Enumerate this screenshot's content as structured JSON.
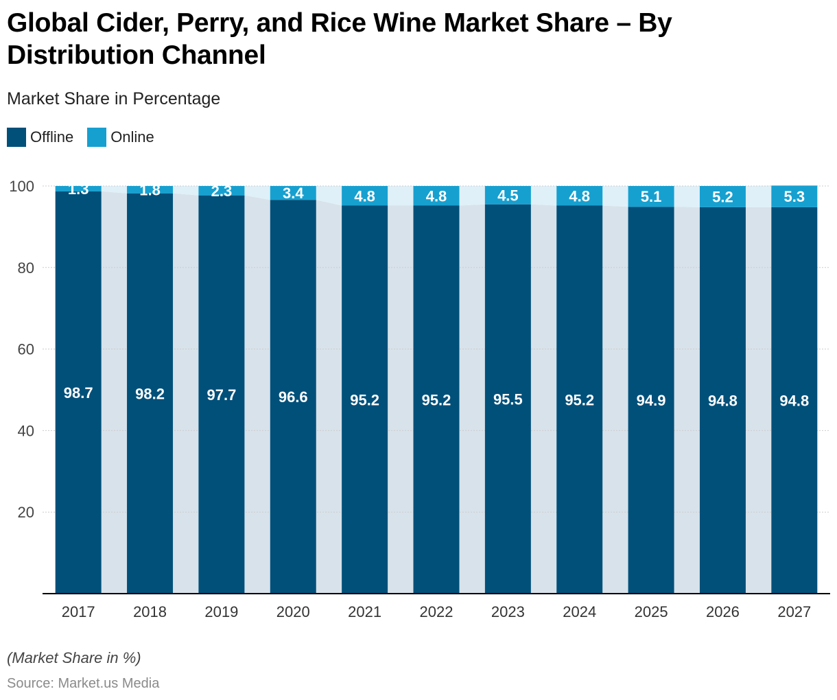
{
  "header": {
    "title": "Global Cider, Perry, and Rice Wine Market Share – By Distribution Channel",
    "subtitle": "Market Share in Percentage"
  },
  "legend": [
    {
      "label": "Offline",
      "color": "#00507a"
    },
    {
      "label": "Online",
      "color": "#16a0d0"
    }
  ],
  "footer": {
    "note": "(Market Share in %)",
    "source": "Source: Market.us Media"
  },
  "colors": {
    "offline": "#00507a",
    "online": "#16a0d0",
    "offline_band": "#d8e2ea",
    "online_band": "#dff0f8",
    "axis": "#000000",
    "grid": "#cccccc"
  },
  "chart_data": {
    "type": "bar",
    "stacked": true,
    "categories": [
      "2017",
      "2018",
      "2019",
      "2020",
      "2021",
      "2022",
      "2023",
      "2024",
      "2025",
      "2026",
      "2027"
    ],
    "series": [
      {
        "name": "Offline",
        "values": [
          98.7,
          98.2,
          97.7,
          96.6,
          95.2,
          95.2,
          95.5,
          95.2,
          94.9,
          94.8,
          94.8
        ]
      },
      {
        "name": "Online",
        "values": [
          1.3,
          1.8,
          2.3,
          3.4,
          4.8,
          4.8,
          4.5,
          4.8,
          5.1,
          5.2,
          5.3
        ]
      }
    ],
    "ylim": [
      0,
      100
    ],
    "yticks": [
      20,
      40,
      60,
      80,
      100
    ],
    "grid": true,
    "legend": "top-left",
    "title": "Global Cider, Perry, and Rice Wine Market Share – By Distribution Channel",
    "subtitle": "Market Share in Percentage"
  }
}
